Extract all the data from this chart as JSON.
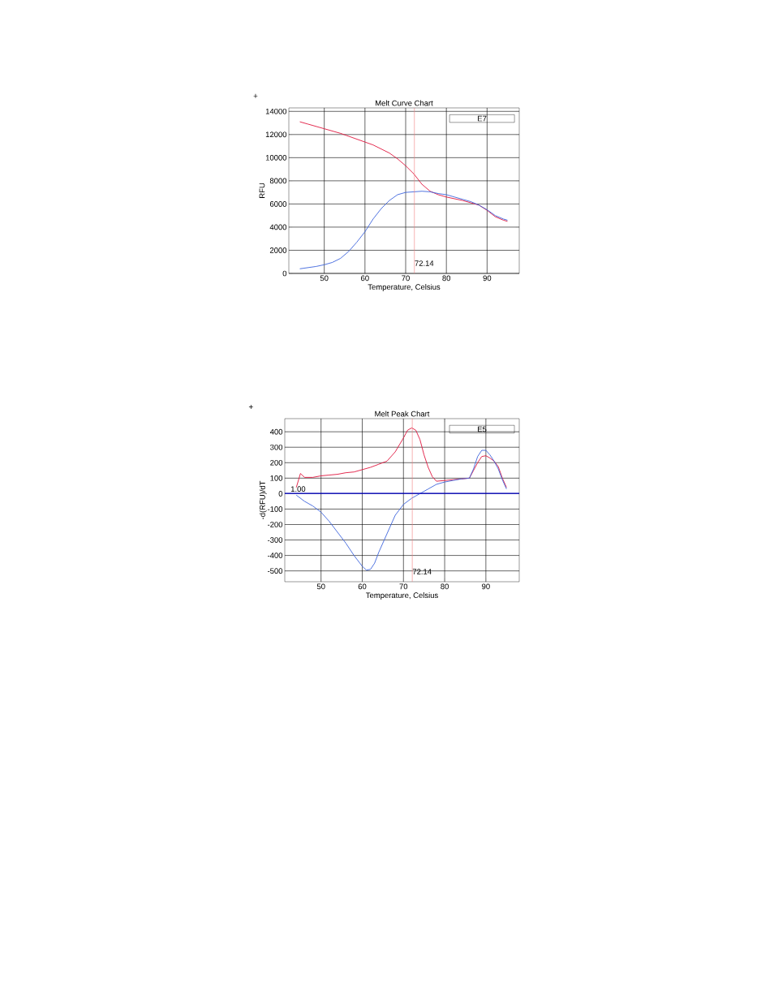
{
  "chart_data": [
    {
      "type": "line",
      "title": "Melt Curve Chart",
      "xlabel": "Temperature, Celsius",
      "ylabel": "RFU",
      "xlim": [
        41.3,
        97.9
      ],
      "ylim": [
        0,
        14300
      ],
      "xticks": [
        50,
        60,
        70,
        80,
        90
      ],
      "yticks": [
        0,
        2000,
        4000,
        6000,
        8000,
        10000,
        12000,
        14000
      ],
      "grid": true,
      "series": [
        {
          "color": "#e0143c",
          "x": [
            44,
            46,
            50,
            54,
            58,
            62,
            66,
            68,
            70,
            72,
            74,
            76,
            78,
            80,
            84,
            86,
            88,
            90,
            92,
            94,
            95
          ],
          "values": [
            13100,
            12900,
            12500,
            12100,
            11600,
            11100,
            10400,
            9900,
            9300,
            8600,
            7700,
            7100,
            6800,
            6600,
            6300,
            6100,
            5900,
            5450,
            4900,
            4600,
            4500
          ]
        },
        {
          "color": "#3c64dc",
          "x": [
            44,
            46,
            48,
            50,
            52,
            54,
            56,
            58,
            60,
            62,
            64,
            66,
            68,
            70,
            72,
            74,
            76,
            78,
            80,
            82,
            84,
            86,
            88,
            90,
            92,
            94,
            95
          ],
          "values": [
            400,
            500,
            600,
            750,
            950,
            1300,
            1900,
            2700,
            3600,
            4700,
            5600,
            6300,
            6800,
            7000,
            7050,
            7100,
            7050,
            6900,
            6800,
            6600,
            6400,
            6200,
            5900,
            5500,
            5000,
            4700,
            4600
          ]
        }
      ],
      "ref_lines": [
        {
          "axis": "x",
          "value": 72.14,
          "label": "72.14",
          "color": "#f08080"
        }
      ],
      "annotations": [
        "E7",
        "+"
      ]
    },
    {
      "type": "line",
      "title": "Melt Peak Chart",
      "xlabel": "Temperature, Celsius",
      "ylabel": "-d(RFU)/dT",
      "xlim": [
        41.2,
        98.1
      ],
      "ylim": [
        -570,
        485
      ],
      "xticks": [
        50,
        60,
        70,
        80,
        90
      ],
      "yticks": [
        -500,
        -400,
        -300,
        -200,
        -100,
        0,
        100,
        200,
        300,
        400
      ],
      "grid": true,
      "series": [
        {
          "color": "#e0143c",
          "x": [
            44,
            45,
            46,
            48,
            50,
            52,
            54,
            56,
            58,
            60,
            62,
            64,
            66,
            68,
            70,
            71,
            72,
            73,
            74,
            75,
            76,
            77,
            78,
            80,
            82,
            84,
            86,
            87,
            88,
            89,
            90,
            91,
            92,
            93,
            94,
            95
          ],
          "values": [
            40,
            130,
            105,
            105,
            115,
            120,
            125,
            135,
            140,
            155,
            170,
            190,
            210,
            270,
            360,
            410,
            425,
            410,
            350,
            250,
            170,
            110,
            80,
            85,
            90,
            95,
            100,
            150,
            200,
            240,
            245,
            230,
            210,
            175,
            100,
            40
          ]
        },
        {
          "color": "#3c64dc",
          "x": [
            44,
            46,
            48,
            50,
            52,
            54,
            56,
            58,
            60,
            61,
            62,
            63,
            64,
            66,
            68,
            70,
            72,
            74,
            76,
            78,
            80,
            82,
            84,
            86,
            87,
            88,
            89,
            90,
            91,
            92,
            93,
            94,
            95
          ],
          "values": [
            -10,
            -50,
            -80,
            -120,
            -180,
            -250,
            -320,
            -400,
            -470,
            -495,
            -490,
            -450,
            -380,
            -260,
            -140,
            -70,
            -30,
            0,
            30,
            60,
            75,
            85,
            95,
            100,
            160,
            240,
            280,
            280,
            250,
            210,
            160,
            90,
            30
          ]
        }
      ],
      "ref_lines": [
        {
          "axis": "x",
          "value": 72.14,
          "label": "72.14",
          "color": "#f08080"
        },
        {
          "axis": "y",
          "value": 1.0,
          "label": "1.00",
          "color": "#0000c8"
        }
      ],
      "annotations": [
        "E5",
        "+"
      ]
    }
  ]
}
